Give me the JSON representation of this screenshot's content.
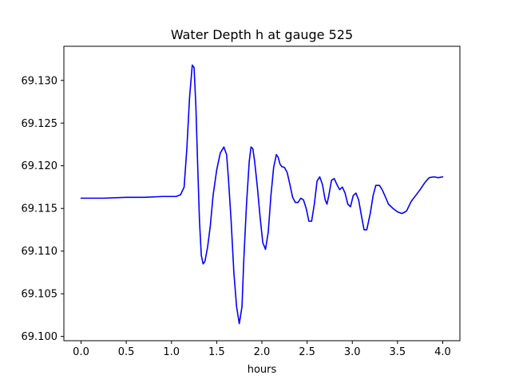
{
  "chart_data": {
    "type": "line",
    "title": "Water Depth h at gauge 525",
    "xlabel": "hours",
    "ylabel": "",
    "xlim": [
      -0.19,
      4.19
    ],
    "ylim": [
      69.0995,
      69.134
    ],
    "x_ticks": [
      0.0,
      0.5,
      1.0,
      1.5,
      2.0,
      2.5,
      3.0,
      3.5,
      4.0
    ],
    "x_tick_labels": [
      "0.0",
      "0.5",
      "1.0",
      "1.5",
      "2.0",
      "2.5",
      "3.0",
      "3.5",
      "4.0"
    ],
    "y_ticks": [
      69.1,
      69.105,
      69.11,
      69.115,
      69.12,
      69.125,
      69.13
    ],
    "y_tick_labels": [
      "69.100",
      "69.105",
      "69.110",
      "69.115",
      "69.120",
      "69.125",
      "69.130"
    ],
    "grid": false,
    "legend": "none",
    "series": [
      {
        "color": "#0000ff",
        "x": [
          0.0,
          0.25,
          0.5,
          0.7,
          0.9,
          1.0,
          1.05,
          1.1,
          1.14,
          1.17,
          1.2,
          1.23,
          1.25,
          1.27,
          1.29,
          1.31,
          1.33,
          1.35,
          1.37,
          1.4,
          1.43,
          1.46,
          1.5,
          1.54,
          1.58,
          1.61,
          1.63,
          1.66,
          1.69,
          1.72,
          1.75,
          1.78,
          1.8,
          1.83,
          1.86,
          1.88,
          1.9,
          1.92,
          1.95,
          1.98,
          2.01,
          2.04,
          2.07,
          2.1,
          2.13,
          2.16,
          2.18,
          2.2,
          2.22,
          2.25,
          2.28,
          2.31,
          2.34,
          2.37,
          2.4,
          2.43,
          2.46,
          2.49,
          2.52,
          2.55,
          2.58,
          2.61,
          2.64,
          2.67,
          2.7,
          2.72,
          2.74,
          2.77,
          2.8,
          2.83,
          2.86,
          2.89,
          2.92,
          2.95,
          2.98,
          3.01,
          3.04,
          3.07,
          3.1,
          3.13,
          3.16,
          3.2,
          3.23,
          3.26,
          3.3,
          3.33,
          3.36,
          3.4,
          3.45,
          3.5,
          3.55,
          3.6,
          3.65,
          3.7,
          3.75,
          3.8,
          3.85,
          3.9,
          3.95,
          4.0
        ],
        "y": [
          69.1162,
          69.1162,
          69.1163,
          69.1163,
          69.1164,
          69.1164,
          69.1164,
          69.1166,
          69.1175,
          69.122,
          69.128,
          69.1318,
          69.1315,
          69.127,
          69.12,
          69.1135,
          69.1095,
          69.1085,
          69.1088,
          69.1105,
          69.113,
          69.1165,
          69.1195,
          69.1215,
          69.1222,
          69.1213,
          69.1185,
          69.1135,
          69.1075,
          69.1035,
          69.1015,
          69.1035,
          69.109,
          69.1155,
          69.1205,
          69.1222,
          69.122,
          69.1205,
          69.1175,
          69.114,
          69.111,
          69.1102,
          69.1122,
          69.1165,
          69.1198,
          69.1213,
          69.121,
          69.1202,
          69.1199,
          69.1198,
          69.1192,
          69.1178,
          69.1163,
          69.1157,
          69.1157,
          69.1162,
          69.116,
          69.115,
          69.1135,
          69.1135,
          69.1155,
          69.1182,
          69.1187,
          69.1178,
          69.116,
          69.1155,
          69.1165,
          69.1183,
          69.1185,
          69.1178,
          69.1172,
          69.1175,
          69.1168,
          69.1155,
          69.1152,
          69.1165,
          69.1168,
          69.116,
          69.1142,
          69.1125,
          69.1125,
          69.1145,
          69.1165,
          69.1177,
          69.1177,
          69.1172,
          69.1165,
          69.1155,
          69.115,
          69.1146,
          69.1144,
          69.1147,
          69.1158,
          69.1165,
          69.1172,
          69.118,
          69.1186,
          69.1187,
          69.1186,
          69.1187
        ]
      }
    ]
  }
}
